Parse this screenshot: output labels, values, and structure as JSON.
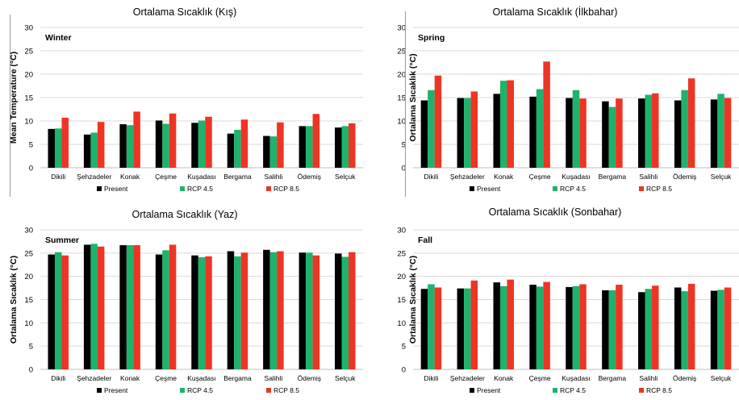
{
  "colors": {
    "present": "#000000",
    "rcp45": "#1db36b",
    "rcp85": "#ee3424",
    "grid": "#d9d9d9"
  },
  "legend": [
    "Present",
    "RCP 4.5",
    "RCP 8.5"
  ],
  "chart_data": [
    {
      "type": "bar",
      "title": "Ortalama Sıcaklık (Kış)",
      "inner_label": "Winter",
      "ylabel": "Mean Temperature (°C)",
      "ylim": [
        0,
        30
      ],
      "yticks": [
        "0",
        "5",
        "10",
        "15",
        "20",
        "25",
        "30"
      ],
      "grid": true,
      "categories": [
        "Dikili",
        "Şehzadeler",
        "Konak",
        "Çeşme",
        "Kuşadası",
        "Bergama",
        "Salihli",
        "Ödemiş",
        "Selçuk"
      ],
      "series": [
        {
          "name": "Present",
          "values": [
            8.3,
            7.1,
            9.3,
            10.1,
            9.6,
            7.3,
            6.8,
            8.9,
            8.6
          ]
        },
        {
          "name": "RCP 4.5",
          "values": [
            8.4,
            7.5,
            9.1,
            9.4,
            10.1,
            8.1,
            6.7,
            8.9,
            8.9
          ]
        },
        {
          "name": "RCP 8.5",
          "values": [
            10.7,
            9.8,
            12.0,
            11.6,
            10.9,
            10.3,
            9.7,
            11.5,
            9.5
          ]
        }
      ]
    },
    {
      "type": "bar",
      "title": "Ortalama Sıcaklık (İlkbahar)",
      "inner_label": "Spring",
      "ylabel": "Ortalama Sıcaklık (°C)",
      "ylim": [
        0,
        30
      ],
      "yticks": [
        "0",
        "5",
        "10",
        "15",
        "20",
        "25",
        "30"
      ],
      "grid": true,
      "categories": [
        "Dikili",
        "Şehzadeler",
        "Konak",
        "Çeşme",
        "Kuşadası",
        "Bergama",
        "Salihli",
        "Ödemiş",
        "Selçuk"
      ],
      "series": [
        {
          "name": "Present",
          "values": [
            14.4,
            14.9,
            15.8,
            15.2,
            14.9,
            14.2,
            14.8,
            14.4,
            14.6
          ]
        },
        {
          "name": "RCP 4.5",
          "values": [
            16.6,
            14.9,
            18.6,
            16.8,
            16.6,
            13.0,
            15.6,
            16.6,
            15.8
          ]
        },
        {
          "name": "RCP 8.5",
          "values": [
            19.7,
            16.3,
            18.7,
            22.7,
            14.8,
            14.8,
            15.9,
            19.1,
            14.9
          ]
        }
      ]
    },
    {
      "type": "bar",
      "title": "Ortalama Sıcaklık (Yaz)",
      "inner_label": "Summer",
      "ylabel": "Ortalama Sıcaklık (°C)",
      "ylim": [
        0,
        30
      ],
      "yticks": [
        "0",
        "5",
        "10",
        "15",
        "20",
        "25",
        "30"
      ],
      "grid": true,
      "categories": [
        "Dikili",
        "Şehzadeler",
        "Konak",
        "Çeşme",
        "Kuşadası",
        "Bergama",
        "Salihli",
        "Ödemiş",
        "Selçuk"
      ],
      "series": [
        {
          "name": "Present",
          "values": [
            24.7,
            26.8,
            26.7,
            24.7,
            24.5,
            25.4,
            25.7,
            25.1,
            24.9
          ]
        },
        {
          "name": "RCP 4.5",
          "values": [
            25.2,
            27.0,
            26.7,
            25.6,
            24.1,
            24.3,
            25.2,
            25.1,
            24.2
          ]
        },
        {
          "name": "RCP 8.5",
          "values": [
            24.5,
            26.4,
            26.7,
            26.8,
            24.3,
            25.1,
            25.4,
            24.5,
            25.2
          ]
        }
      ]
    },
    {
      "type": "bar",
      "title": "Ortalama Sıcaklık (Sonbahar)",
      "inner_label": "Fall",
      "ylabel": "Ortalama Sıcaklık (°C)",
      "ylim": [
        0,
        30
      ],
      "yticks": [
        "0",
        "5",
        "10",
        "15",
        "20",
        "25",
        "30"
      ],
      "grid": true,
      "categories": [
        "Dikili",
        "Şehzadeler",
        "Konak",
        "Çeşme",
        "Kuşadası",
        "Bergama",
        "Salihli",
        "Ödemiş",
        "Selçuk"
      ],
      "series": [
        {
          "name": "Present",
          "values": [
            17.3,
            17.4,
            18.7,
            18.2,
            17.7,
            17.0,
            16.6,
            17.6,
            16.9
          ]
        },
        {
          "name": "RCP 4.5",
          "values": [
            18.3,
            17.4,
            17.9,
            17.8,
            17.9,
            17.0,
            17.3,
            16.8,
            17.1
          ]
        },
        {
          "name": "RCP 8.5",
          "values": [
            17.6,
            19.1,
            19.3,
            18.8,
            18.3,
            18.2,
            18.0,
            18.4,
            17.6
          ]
        }
      ]
    }
  ]
}
